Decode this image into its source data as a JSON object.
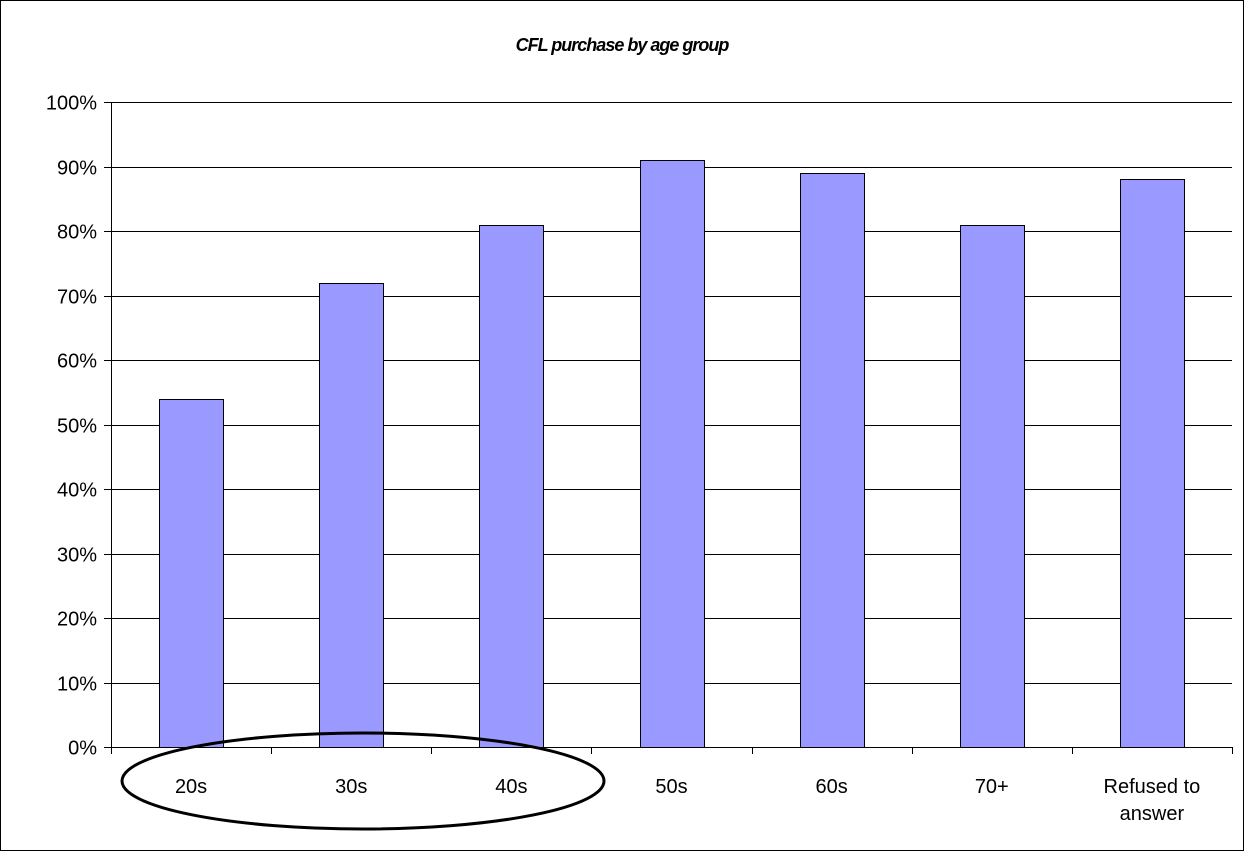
{
  "chart_data": {
    "type": "bar",
    "title": "CFL purchase by age group",
    "xlabel": "",
    "ylabel": "",
    "categories": [
      "20s",
      "30s",
      "40s",
      "50s",
      "60s",
      "70+",
      "Refused to answer"
    ],
    "category_lines": [
      [
        "20s"
      ],
      [
        "30s"
      ],
      [
        "40s"
      ],
      [
        "50s"
      ],
      [
        "60s"
      ],
      [
        "70+"
      ],
      [
        "Refused to",
        "answer"
      ]
    ],
    "values": [
      54,
      72,
      81,
      91,
      89,
      81,
      88
    ],
    "ylim": [
      0,
      100
    ],
    "yticks": [
      0,
      10,
      20,
      30,
      40,
      50,
      60,
      70,
      80,
      90,
      100
    ],
    "ytick_labels": [
      "0%",
      "10%",
      "20%",
      "30%",
      "40%",
      "50%",
      "60%",
      "70%",
      "80%",
      "90%",
      "100%"
    ],
    "grid": true,
    "legend": "none",
    "annotation": "ellipse around 20s, 30s, 40s labels",
    "colors": {
      "bar_fill": "#9999ff",
      "bar_stroke": "#000000",
      "grid": "#000000",
      "axis": "#000000",
      "background": "#ffffff"
    }
  }
}
